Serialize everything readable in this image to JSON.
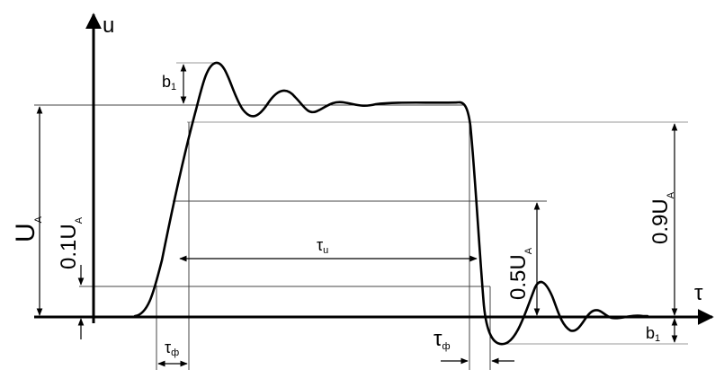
{
  "axes": {
    "y_label": "u",
    "x_label": "τ"
  },
  "labels": {
    "amplitude": {
      "main": "U",
      "sub": "A"
    },
    "ten_percent": {
      "main": "0.1U",
      "sub": "A"
    },
    "ninety_percent": {
      "main": "0.9U",
      "sub": "A"
    },
    "fifty_percent": {
      "main": "0.5U",
      "sub": "A"
    },
    "overshoot_top": {
      "main": "b",
      "sub": "1"
    },
    "overshoot_bottom": {
      "main": "b",
      "sub": "1"
    },
    "pulse_width": {
      "main": "τ",
      "sub": "u"
    },
    "rise_time": {
      "main": "τ",
      "sub": "ф"
    },
    "fall_time": {
      "main": "τ",
      "sub": "ф"
    }
  },
  "colors": {
    "stroke": "#000000",
    "guide": "#444444",
    "guide_light": "#9a9a9a",
    "background": "#ffffff"
  }
}
